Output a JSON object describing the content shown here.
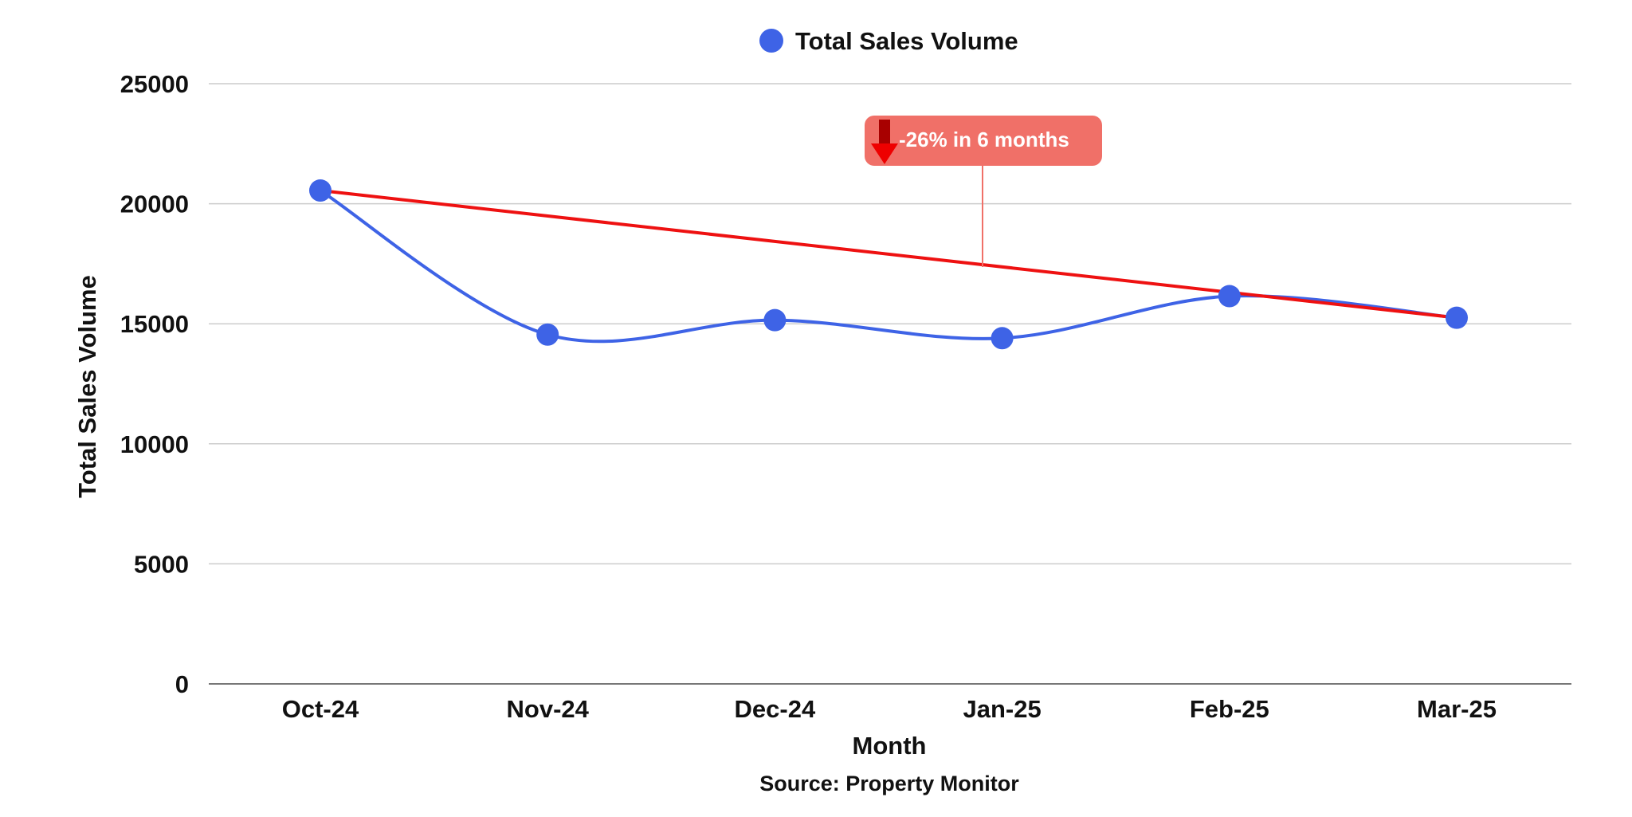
{
  "chart_data": {
    "type": "line",
    "categories": [
      "Oct-24",
      "Nov-24",
      "Dec-24",
      "Jan-25",
      "Feb-25",
      "Mar-25"
    ],
    "series": [
      {
        "name": "Total Sales Volume",
        "values": [
          20550,
          14550,
          15150,
          14400,
          16150,
          15250
        ],
        "color": "#3e63e6"
      }
    ],
    "trendline": {
      "from": {
        "category": "Oct-24",
        "value": 20550
      },
      "to": {
        "category": "Mar-25",
        "value": 15250
      },
      "color": "#ee1111"
    },
    "annotation": {
      "text": "-26% in 6 months",
      "icon": "down-arrow-icon",
      "box_color": "#f07068",
      "arrow_color": "#ee0000"
    },
    "xlabel": "Month",
    "ylabel": "Total Sales Volume",
    "ylim": [
      0,
      25000
    ],
    "yticks": [
      0,
      5000,
      10000,
      15000,
      20000,
      25000
    ],
    "grid": true,
    "legend_position": "top-center",
    "source": "Source: Property Monitor"
  }
}
